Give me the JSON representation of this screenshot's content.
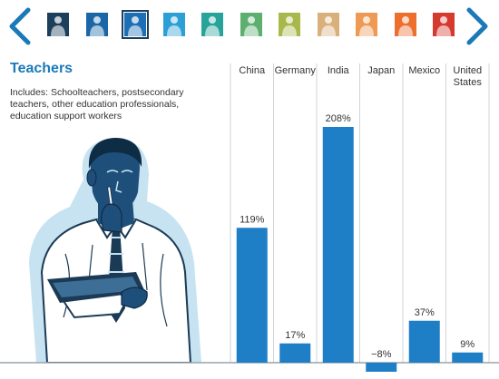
{
  "nav": {
    "thumbnails": [
      {
        "name": "occupation-thumb-1",
        "color": "#1c3f5c"
      },
      {
        "name": "occupation-thumb-2",
        "color": "#1a66a6"
      },
      {
        "name": "occupation-thumb-3",
        "color": "#1d6fb5"
      },
      {
        "name": "occupation-thumb-4",
        "color": "#2b9fd6"
      },
      {
        "name": "occupation-thumb-5",
        "color": "#27a39a"
      },
      {
        "name": "occupation-thumb-6",
        "color": "#5daf70"
      },
      {
        "name": "occupation-thumb-7",
        "color": "#a8b84a"
      },
      {
        "name": "occupation-thumb-8",
        "color": "#d9b07a"
      },
      {
        "name": "occupation-thumb-9",
        "color": "#ee9a55"
      },
      {
        "name": "occupation-thumb-10",
        "color": "#ec6f2d"
      },
      {
        "name": "occupation-thumb-11",
        "color": "#d63a2f"
      }
    ],
    "selected_index": 2,
    "arrow_color": "#1a7ab8"
  },
  "heading": {
    "title": "Teachers",
    "description": "Includes: Schoolteachers, postsecondary teachers, other education professionals, education support workers"
  },
  "chart_data": {
    "type": "bar",
    "categories": [
      "China",
      "Germany",
      "India",
      "Japan",
      "Mexico",
      "United States"
    ],
    "values": [
      119,
      17,
      208,
      -8,
      37,
      9
    ],
    "labels": [
      "119%",
      "17%",
      "208%",
      "−8%",
      "37%",
      "9%"
    ],
    "bar_color": "#1f7fc6",
    "label_color": "#333333",
    "grid": true
  }
}
